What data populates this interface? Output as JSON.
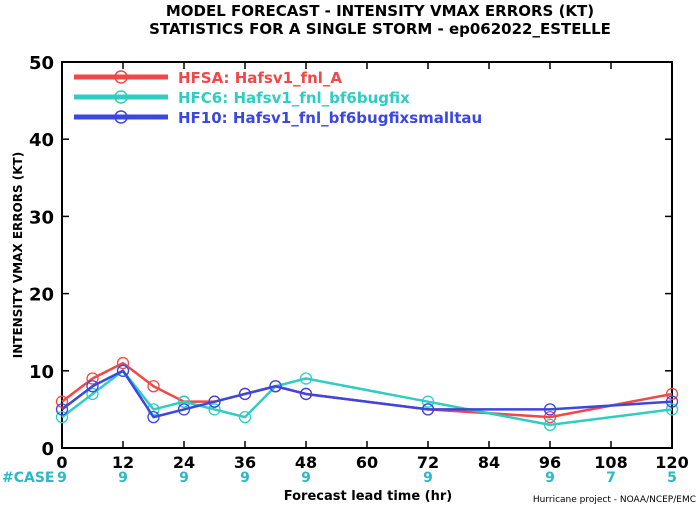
{
  "chart_data": {
    "type": "line",
    "title": "MODEL FORECAST - INTENSITY VMAX ERRORS (KT)",
    "subtitle": "STATISTICS FOR A SINGLE STORM - ep062022_ESTELLE",
    "xlabel": "Forecast lead time (hr)",
    "ylabel": "INTENSITY VMAX ERRORS (KT)",
    "xlim": [
      0,
      120
    ],
    "ylim": [
      0,
      50
    ],
    "x_ticks": [
      0,
      12,
      24,
      36,
      48,
      60,
      72,
      84,
      96,
      108,
      120
    ],
    "y_ticks": [
      0,
      10,
      20,
      30,
      40,
      50
    ],
    "grid": false,
    "legend_position": "top-left",
    "case_label": "#CASE",
    "case_counts": [
      {
        "x": 0,
        "n": "9"
      },
      {
        "x": 12,
        "n": "9"
      },
      {
        "x": 24,
        "n": "9"
      },
      {
        "x": 36,
        "n": "9"
      },
      {
        "x": 48,
        "n": "9"
      },
      {
        "x": 72,
        "n": "9"
      },
      {
        "x": 96,
        "n": "9"
      },
      {
        "x": 108,
        "n": "7"
      },
      {
        "x": 120,
        "n": "5"
      }
    ],
    "credit": "Hurricane project - NOAA/NCEP/EMC",
    "case_color": "#2db8c8",
    "series": [
      {
        "name": "HFSA: Hafsv1_fnl_A",
        "color": "#f04848",
        "points": [
          [
            0,
            6
          ],
          [
            6,
            9
          ],
          [
            12,
            11
          ],
          [
            18,
            8
          ],
          [
            24,
            6
          ],
          [
            30,
            6
          ],
          [
            36,
            7
          ],
          [
            42,
            8
          ],
          [
            48,
            7
          ],
          [
            72,
            5
          ],
          [
            96,
            4
          ],
          [
            120,
            7
          ]
        ]
      },
      {
        "name": "HFC6: Hafsv1_fnl_bf6bugfix",
        "color": "#2ecdc4",
        "points": [
          [
            0,
            4
          ],
          [
            6,
            7
          ],
          [
            12,
            10
          ],
          [
            18,
            5
          ],
          [
            24,
            6
          ],
          [
            30,
            5
          ],
          [
            36,
            4
          ],
          [
            42,
            8
          ],
          [
            48,
            9
          ],
          [
            72,
            6
          ],
          [
            96,
            3
          ],
          [
            120,
            5
          ]
        ]
      },
      {
        "name": "HF10: Hafsv1_fnl_bf6bugfixsmalltau",
        "color": "#3c46e0",
        "points": [
          [
            0,
            5
          ],
          [
            6,
            8
          ],
          [
            12,
            10
          ],
          [
            18,
            4
          ],
          [
            24,
            5
          ],
          [
            30,
            6
          ],
          [
            36,
            7
          ],
          [
            42,
            8
          ],
          [
            48,
            7
          ],
          [
            72,
            5
          ],
          [
            96,
            5
          ],
          [
            120,
            6
          ]
        ]
      }
    ]
  }
}
